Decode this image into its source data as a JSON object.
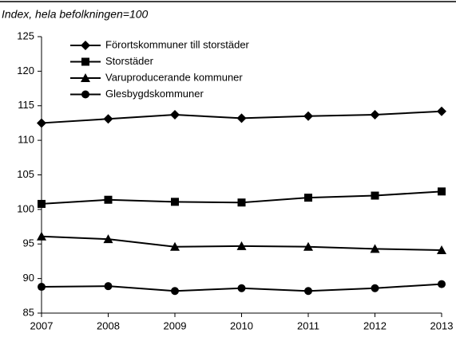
{
  "chart_data": {
    "type": "line",
    "title": "Index, hela befolkningen=100",
    "x": [
      2007,
      2008,
      2009,
      2010,
      2011,
      2012,
      2013
    ],
    "xlim": [
      2007,
      2013
    ],
    "xticks": [
      2007,
      2008,
      2009,
      2010,
      2011,
      2012,
      2013
    ],
    "ylim": [
      85,
      125
    ],
    "yticks": [
      85,
      90,
      95,
      100,
      105,
      110,
      115,
      120,
      125
    ],
    "grid": false,
    "legend": "top-left",
    "series": [
      {
        "name": "Förortskommuner till storstäder",
        "color": "#000000",
        "marker": "diamond",
        "values": [
          112.5,
          113.1,
          113.7,
          113.2,
          113.5,
          113.7,
          114.2
        ]
      },
      {
        "name": "Storstäder",
        "color": "#000000",
        "marker": "square",
        "values": [
          100.8,
          101.4,
          101.1,
          101.0,
          101.7,
          102.0,
          102.6
        ]
      },
      {
        "name": "Varuproducerande kommuner",
        "color": "#000000",
        "marker": "triangle",
        "values": [
          96.1,
          95.7,
          94.6,
          94.7,
          94.6,
          94.3,
          94.1
        ]
      },
      {
        "name": "Glesbygdskommuner",
        "color": "#000000",
        "marker": "circle",
        "values": [
          88.8,
          88.9,
          88.2,
          88.6,
          88.2,
          88.6,
          89.2
        ]
      }
    ]
  }
}
